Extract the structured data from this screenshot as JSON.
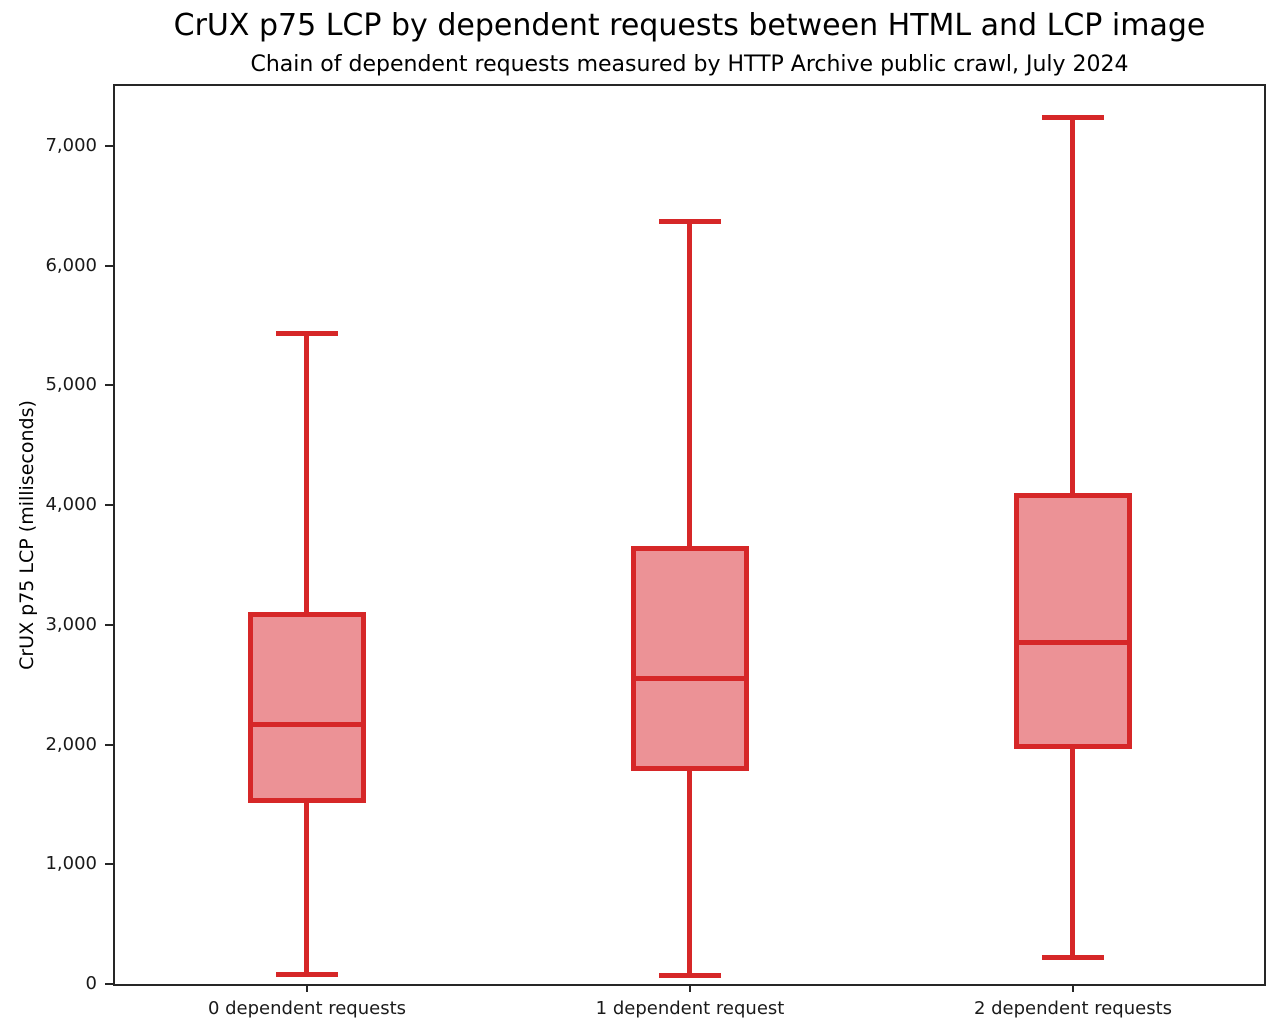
{
  "title": "CrUX p75 LCP by dependent requests between HTML and LCP image",
  "subtitle": "Chain of dependent requests measured by HTTP Archive public crawl, July 2024",
  "chart_data": {
    "type": "boxplot",
    "title": "CrUX p75 LCP by dependent requests between HTML and LCP image",
    "subtitle": "Chain of dependent requests measured by HTTP Archive public crawl, July 2024",
    "xlabel": "",
    "ylabel": "CrUX p75 LCP (milliseconds)",
    "categories": [
      "0 dependent requests",
      "1 dependent request",
      "2 dependent requests"
    ],
    "series": [
      {
        "name": "0 dependent requests",
        "whisker_low": 80,
        "q1": 1540,
        "median": 2170,
        "q3": 3090,
        "whisker_high": 5430,
        "fliers": []
      },
      {
        "name": "1 dependent request",
        "whisker_low": 70,
        "q1": 1800,
        "median": 2550,
        "q3": 3640,
        "whisker_high": 6370,
        "fliers": []
      },
      {
        "name": "2 dependent requests",
        "whisker_low": 220,
        "q1": 1980,
        "median": 2850,
        "q3": 4080,
        "whisker_high": 7240,
        "fliers": []
      }
    ],
    "ylim": [
      0,
      7500
    ],
    "yticks": [
      0,
      1000,
      2000,
      3000,
      4000,
      5000,
      6000,
      7000
    ],
    "ytick_labels": [
      "0",
      "1,000",
      "2,000",
      "3,000",
      "4,000",
      "5,000",
      "6,000",
      "7,000"
    ],
    "layout": {
      "grid": false,
      "legend": false,
      "orientation": "vertical"
    },
    "colors": {
      "box_edge": "#d62728",
      "box_fill": "#ec9296",
      "axis": "#262626",
      "text": "#000000"
    }
  }
}
